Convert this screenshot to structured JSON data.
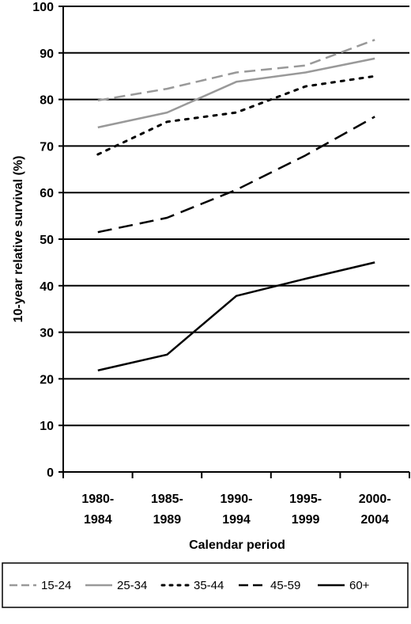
{
  "chart_data": {
    "type": "line",
    "xlabel": "Calendar period",
    "ylabel": "10-year relative survival (%)",
    "ylim": [
      0,
      100
    ],
    "yticks": [
      0,
      10,
      20,
      30,
      40,
      50,
      60,
      70,
      80,
      90,
      100
    ],
    "grid": true,
    "legend_position": "bottom",
    "categories": [
      [
        "1980-",
        "1984"
      ],
      [
        "1985-",
        "1989"
      ],
      [
        "1990-",
        "1994"
      ],
      [
        "1995-",
        "1999"
      ],
      [
        "2000-",
        "2004"
      ]
    ],
    "series": [
      {
        "name": "15-24",
        "values": [
          79.8,
          82.3,
          85.8,
          87.3,
          92.8
        ],
        "color": "#999999",
        "style": "dashed"
      },
      {
        "name": "25-34",
        "values": [
          74.0,
          77.2,
          83.8,
          85.8,
          88.8
        ],
        "color": "#999999",
        "style": "solid"
      },
      {
        "name": "35-44",
        "values": [
          68.2,
          75.2,
          77.2,
          82.8,
          85.0
        ],
        "color": "#000000",
        "style": "dotted"
      },
      {
        "name": "45-59",
        "values": [
          51.5,
          54.6,
          60.6,
          68.0,
          76.3
        ],
        "color": "#000000",
        "style": "longdash"
      },
      {
        "name": "60+",
        "values": [
          21.8,
          25.2,
          37.8,
          41.5,
          45.0
        ],
        "color": "#000000",
        "style": "solid"
      }
    ]
  }
}
